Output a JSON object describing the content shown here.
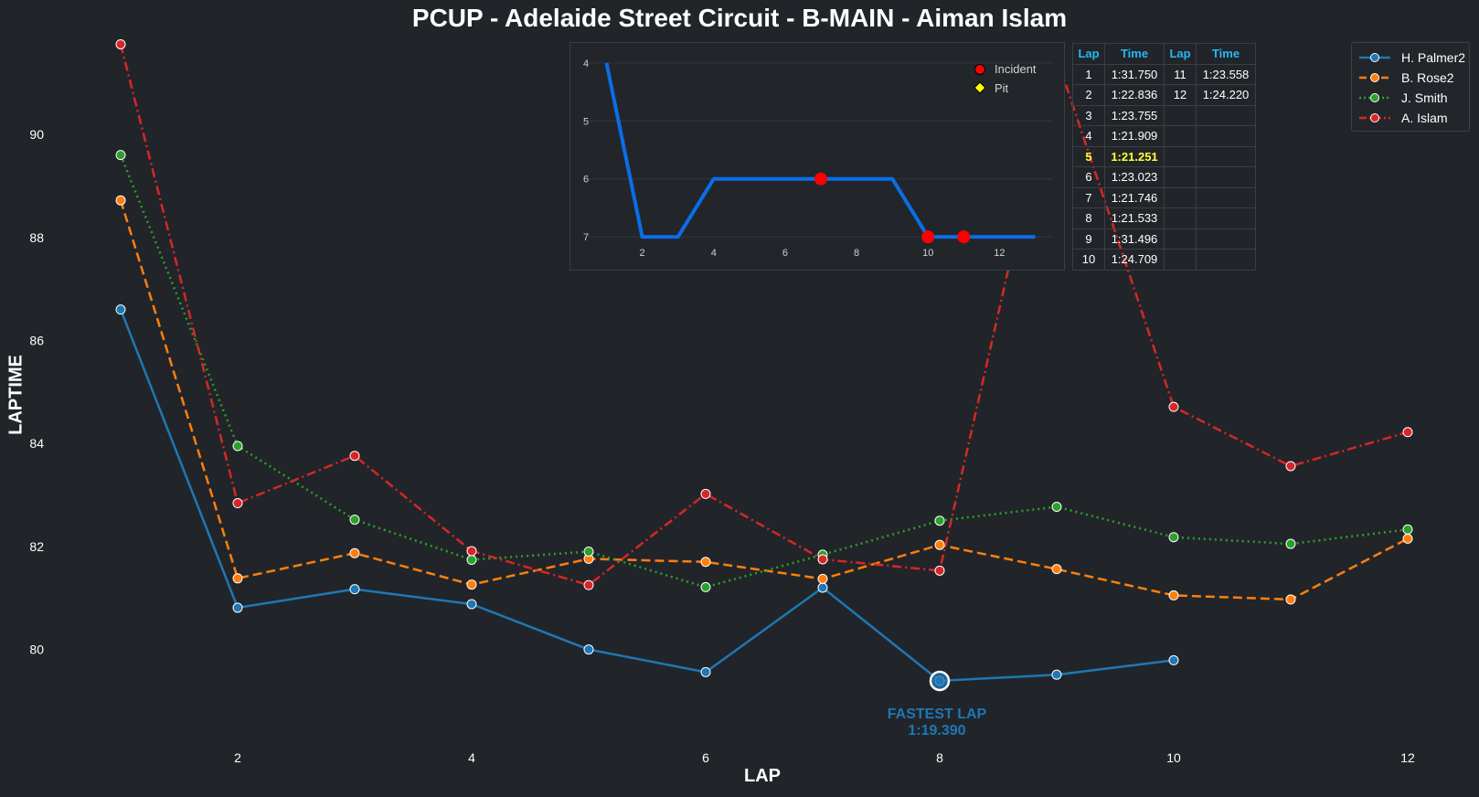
{
  "title": "PCUP - Adelaide Street Circuit - B-MAIN - Aiman Islam",
  "chart_data": [
    {
      "type": "line",
      "title": "PCUP - Adelaide Street Circuit - B-MAIN - Aiman Islam",
      "xlabel": "LAP",
      "ylabel": "LAPTIME",
      "xlim": [
        0.5,
        12.5
      ],
      "ylim": [
        78.2,
        91.9
      ],
      "x_ticks": [
        "2",
        "4",
        "6",
        "8",
        "10",
        "12"
      ],
      "y_ticks": [
        "80",
        "82",
        "84",
        "86",
        "88",
        "90"
      ],
      "grid": false,
      "legend_position": "top-right",
      "series": [
        {
          "name": "H. Palmer2",
          "color": "#1f77b4",
          "dash": "solid",
          "x": [
            1,
            2,
            3,
            4,
            5,
            6,
            7,
            8,
            9,
            10
          ],
          "values": [
            86.6,
            80.81,
            81.17,
            80.88,
            80.0,
            79.56,
            81.2,
            79.39,
            79.51,
            79.79
          ]
        },
        {
          "name": "B. Rose2",
          "color": "#ff7f0e",
          "dash": "dashed",
          "x": [
            1,
            2,
            3,
            4,
            5,
            6,
            7,
            8,
            9,
            10,
            11,
            12
          ],
          "values": [
            88.72,
            81.38,
            81.87,
            81.26,
            81.76,
            81.7,
            81.37,
            82.03,
            81.56,
            81.05,
            80.97,
            82.15
          ]
        },
        {
          "name": "J. Smith",
          "color": "#2ca02c",
          "dash": "dotted",
          "x": [
            1,
            2,
            3,
            4,
            5,
            6,
            7,
            8,
            9,
            10,
            11,
            12
          ],
          "values": [
            89.6,
            83.95,
            82.52,
            81.74,
            81.9,
            81.21,
            81.84,
            82.5,
            82.77,
            82.18,
            82.05,
            82.33
          ]
        },
        {
          "name": "A. Islam",
          "color": "#d62728",
          "dash": "dashdot",
          "x": [
            1,
            2,
            3,
            4,
            5,
            6,
            7,
            8,
            9,
            10,
            11,
            12
          ],
          "values": [
            91.75,
            82.84,
            83.76,
            81.91,
            81.25,
            83.02,
            81.75,
            81.53,
            91.5,
            84.71,
            83.56,
            84.22
          ]
        }
      ],
      "annotation": {
        "label": "FASTEST LAP",
        "value": "1:19.390",
        "x": 8,
        "y": 79.39
      }
    },
    {
      "type": "line",
      "title": "",
      "xlim": [
        0.5,
        13.5
      ],
      "ylim": [
        7.25,
        3.75
      ],
      "x_ticks": [
        "2",
        "4",
        "6",
        "8",
        "10",
        "12"
      ],
      "y_ticks": [
        "4",
        "5",
        "6",
        "7"
      ],
      "grid": true,
      "legend_position": "top-right",
      "series": [
        {
          "name": "Position",
          "color": "#0a6ee8",
          "x": [
            1,
            2,
            3,
            4,
            5,
            6,
            7,
            8,
            9,
            10,
            11,
            12,
            13
          ],
          "values": [
            4,
            7,
            7,
            6,
            6,
            6,
            6,
            6,
            6,
            7,
            7,
            7,
            7
          ]
        }
      ],
      "markers": [
        {
          "name": "Incident",
          "color": "#ff0000",
          "points": [
            {
              "x": 7,
              "y": 6
            },
            {
              "x": 10,
              "y": 7
            },
            {
              "x": 11,
              "y": 7
            }
          ]
        },
        {
          "name": "Pit",
          "color": "#ffff00",
          "points": []
        }
      ],
      "legend": [
        "Incident",
        "Pit"
      ]
    },
    {
      "type": "table",
      "headers": [
        "Lap",
        "Time",
        "Lap",
        "Time"
      ],
      "rows": [
        [
          "1",
          "1:31.750",
          "11",
          "1:23.558"
        ],
        [
          "2",
          "1:22.836",
          "12",
          "1:24.220"
        ],
        [
          "3",
          "1:23.755",
          "",
          ""
        ],
        [
          "4",
          "1:21.909",
          "",
          ""
        ],
        [
          "5",
          "1:21.251",
          "",
          ""
        ],
        [
          "6",
          "1:23.023",
          "",
          ""
        ],
        [
          "7",
          "1:21.746",
          "",
          ""
        ],
        [
          "8",
          "1:21.533",
          "",
          ""
        ],
        [
          "9",
          "1:31.496",
          "",
          ""
        ],
        [
          "10",
          "1:24.709",
          "",
          ""
        ]
      ],
      "highlight_row": 4,
      "header_color": "#29b6f6",
      "highlight_color": "#ffff33"
    }
  ]
}
